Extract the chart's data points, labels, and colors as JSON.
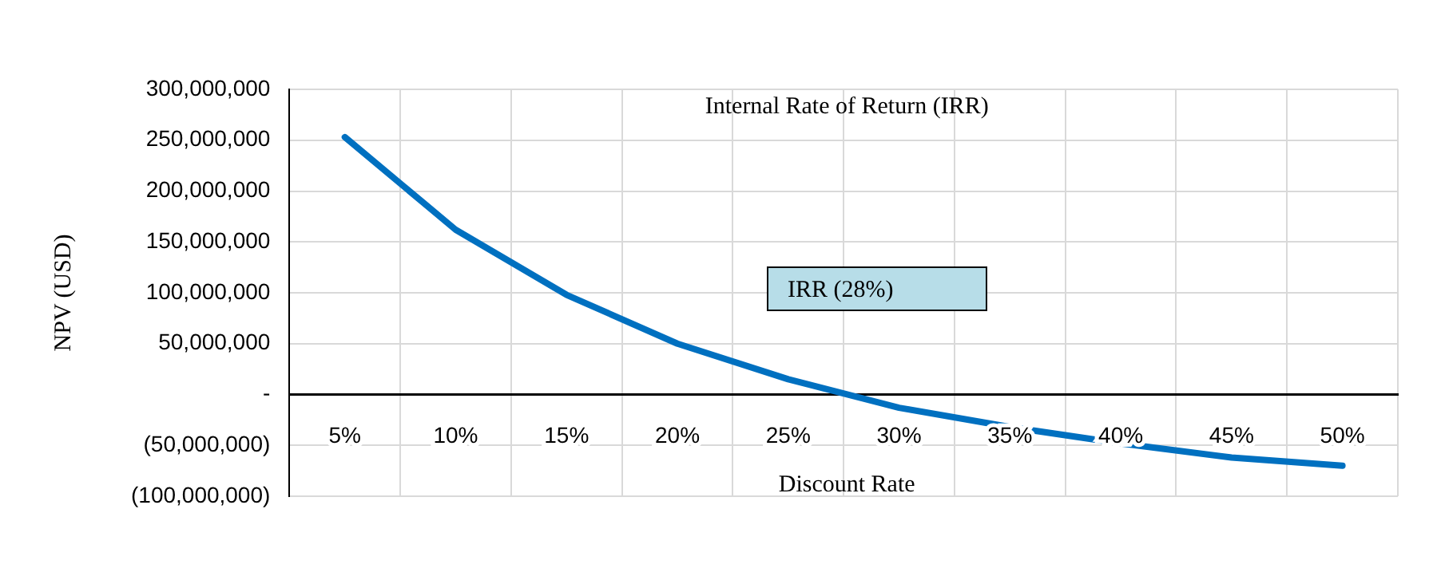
{
  "chart_data": {
    "type": "line",
    "title": "Internal Rate of Return (IRR)",
    "xlabel": "Discount Rate",
    "ylabel": "NPV (USD)",
    "categories": [
      "5%",
      "10%",
      "15%",
      "20%",
      "25%",
      "30%",
      "35%",
      "40%",
      "45%",
      "50%"
    ],
    "series": [
      {
        "color": "#0070c0",
        "values": [
          253000000,
          162000000,
          98000000,
          50000000,
          15000000,
          -13000000,
          -32000000,
          -48000000,
          -62000000,
          -70000000
        ]
      }
    ],
    "ylim": [
      -100000000,
      300000000
    ],
    "yticks": [
      {
        "value": -100000000,
        "label": "(100,000,000)"
      },
      {
        "value": -50000000,
        "label": "(50,000,000)"
      },
      {
        "value": 0,
        "label": "-"
      },
      {
        "value": 50000000,
        "label": "50,000,000"
      },
      {
        "value": 100000000,
        "label": "100,000,000"
      },
      {
        "value": 150000000,
        "label": "150,000,000"
      },
      {
        "value": 200000000,
        "label": "200,000,000"
      },
      {
        "value": 250000000,
        "label": "250,000,000"
      },
      {
        "value": 300000000,
        "label": "300,000,000"
      }
    ],
    "annotations": [
      "IRR (28%)"
    ],
    "grid": true,
    "legend": false,
    "marker": "none",
    "line_style": "solid"
  }
}
